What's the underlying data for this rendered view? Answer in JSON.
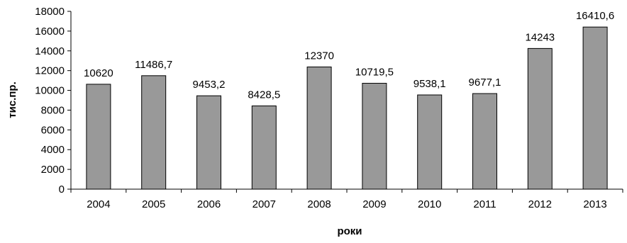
{
  "chart_data": {
    "type": "bar",
    "categories": [
      "2004",
      "2005",
      "2006",
      "2007",
      "2008",
      "2009",
      "2010",
      "2011",
      "2012",
      "2013"
    ],
    "values": [
      10620,
      11486.7,
      9453.2,
      8428.5,
      12370,
      10719.5,
      9538.1,
      9677.1,
      14243,
      16410.6
    ],
    "data_labels": [
      "10620",
      "11486,7",
      "9453,2",
      "8428,5",
      "12370",
      "10719,5",
      "9538,1",
      "9677,1",
      "14243",
      "16410,6"
    ],
    "xlabel": "роки",
    "ylabel": "тис.пр.",
    "ylim": [
      0,
      18000
    ],
    "yticks": [
      0,
      2000,
      4000,
      6000,
      8000,
      10000,
      12000,
      14000,
      16000,
      18000
    ],
    "grid": false,
    "legend": "none",
    "bar_color": "#999999",
    "bar_edge_color": "#000000"
  }
}
